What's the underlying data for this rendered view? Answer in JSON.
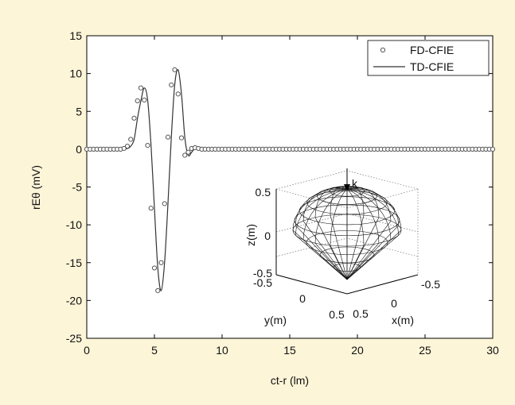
{
  "chart_data": {
    "type": "line",
    "title": "",
    "xlabel": "ct-r (lm)",
    "ylabel": "rEθ (mV)",
    "xlim": [
      0,
      30
    ],
    "ylim": [
      -25,
      15
    ],
    "xticks": [
      "0",
      "5",
      "10",
      "15",
      "20",
      "25",
      "30"
    ],
    "yticks": [
      "15",
      "10",
      "5",
      "0",
      "-5",
      "-10",
      "-15",
      "-20",
      "-25"
    ],
    "grid": false,
    "legend": "top-right",
    "series": [
      {
        "name": "FD-CFIE",
        "style": "markers",
        "marker": "circle",
        "color": "#555555",
        "x": [
          0,
          0.25,
          0.5,
          0.75,
          1,
          1.25,
          1.5,
          1.75,
          2,
          2.25,
          2.5,
          2.75,
          3,
          3.25,
          3.5,
          3.75,
          4,
          4.25,
          4.5,
          4.75,
          5,
          5.25,
          5.5,
          5.75,
          6,
          6.25,
          6.5,
          6.75,
          7,
          7.25,
          7.5,
          7.75,
          8,
          8.25,
          8.5,
          8.75,
          9,
          9.25,
          9.5,
          9.75,
          10,
          10.25,
          10.5,
          10.75,
          11,
          11.25,
          11.5,
          11.75,
          12,
          12.25,
          12.5,
          12.75,
          13,
          13.25,
          13.5,
          13.75,
          14,
          14.25,
          14.5,
          14.75,
          15,
          15.25,
          15.5,
          15.75,
          16,
          16.25,
          16.5,
          16.75,
          17,
          17.25,
          17.5,
          17.75,
          18,
          18.25,
          18.5,
          18.75,
          19,
          19.25,
          19.5,
          19.75,
          20,
          20.25,
          20.5,
          20.75,
          21,
          21.25,
          21.5,
          21.75,
          22,
          22.25,
          22.5,
          22.75,
          23,
          23.25,
          23.5,
          23.75,
          24,
          24.25,
          24.5,
          24.75,
          25,
          25.25,
          25.5,
          25.75,
          26,
          26.25,
          26.5,
          26.75,
          27,
          27.25,
          27.5,
          27.75,
          28,
          28.25,
          28.5,
          28.75,
          29,
          29.25,
          29.5,
          29.75,
          30
        ],
        "y": [
          0,
          0,
          0,
          0,
          0,
          0,
          0,
          0,
          0,
          0,
          0,
          0.1,
          0.4,
          1.3,
          4.1,
          6.4,
          8.1,
          6.5,
          0.5,
          -7.8,
          -15.7,
          -18.7,
          -15,
          -7.2,
          1.6,
          8.5,
          10.5,
          7.3,
          1.5,
          -0.8,
          -0.4,
          0.1,
          0.2,
          0.1,
          0,
          0,
          0,
          0,
          0,
          0,
          0,
          0,
          0,
          0,
          0,
          0,
          0,
          0,
          0,
          0,
          0,
          0,
          0,
          0,
          0,
          0,
          0,
          0,
          0,
          0,
          0,
          0,
          0,
          0,
          0,
          0,
          0,
          0,
          0,
          0,
          0,
          0,
          0,
          0,
          0,
          0,
          0,
          0,
          0,
          0,
          0,
          0,
          0,
          0,
          0,
          0,
          0,
          0,
          0,
          0,
          0,
          0,
          0,
          0,
          0,
          0,
          0,
          0,
          0,
          0,
          0,
          0,
          0,
          0,
          0,
          0,
          0,
          0,
          0,
          0,
          0,
          0,
          0,
          0,
          0,
          0,
          0,
          0,
          0,
          0,
          0
        ]
      },
      {
        "name": "TD-CFIE",
        "style": "line",
        "color": "#333333",
        "x": [
          0,
          2.5,
          3,
          3.25,
          3.5,
          3.75,
          4,
          4.25,
          4.5,
          4.75,
          5,
          5.25,
          5.5,
          5.75,
          6,
          6.25,
          6.5,
          6.75,
          7,
          7.25,
          7.5,
          7.75,
          8,
          8.25,
          8.5,
          8.75,
          9,
          9.25,
          9.5,
          9.75,
          10,
          30
        ],
        "y": [
          0,
          0,
          0.1,
          0.4,
          1.3,
          4.1,
          6.4,
          8.1,
          6.5,
          0.5,
          -7.8,
          -15.7,
          -18.7,
          -15,
          -7.2,
          1.6,
          8.5,
          10.5,
          7.3,
          1.5,
          -0.8,
          -0.4,
          0.1,
          0.2,
          0.1,
          0,
          0,
          0,
          0,
          0,
          0,
          0
        ]
      }
    ]
  },
  "inset": {
    "type": "3d-mesh",
    "z_axis_label": "z(m)",
    "y_axis_label": "y(m)",
    "x_axis_label": "x(m)",
    "z_ticks": [
      "0.5",
      "0",
      "-0.5"
    ],
    "y_ticks": [
      "-0.5",
      "0",
      "0.5"
    ],
    "x_ticks": [
      "0.5",
      "0",
      "-0.5"
    ],
    "incidence_label": "k"
  }
}
